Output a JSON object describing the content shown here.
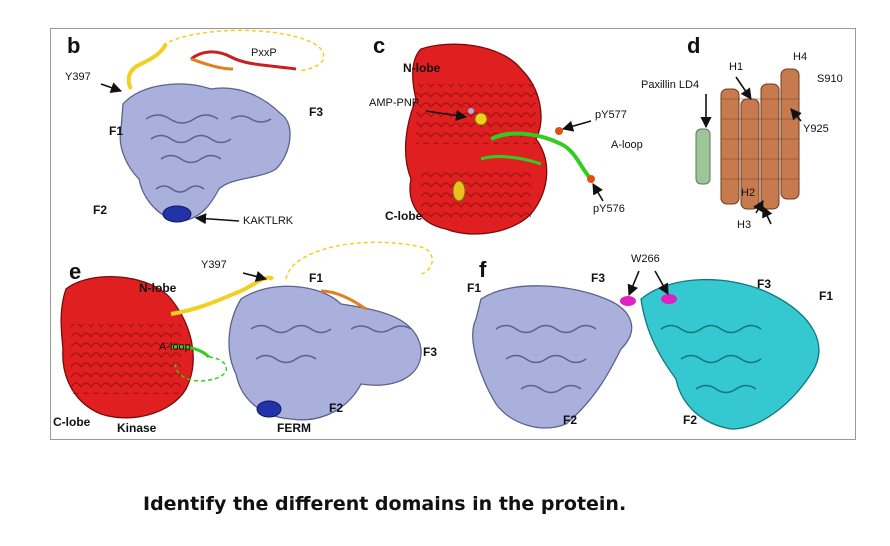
{
  "question": "Identify the different domains in the protein.",
  "colors": {
    "ferm": "#aab0dc",
    "kinase": "#e02020",
    "linker": "#f0d020",
    "loop": "#33cc22",
    "helix": "#c87a4f",
    "paxillin": "#9ec49a",
    "twin": "#35c8d0",
    "motif": "#2233aa",
    "w266": "#e020c0"
  },
  "panels": {
    "b": {
      "letter": "b",
      "y397": "Y397",
      "f1": "F1",
      "f2": "F2",
      "f3": "F3",
      "pxxp": "PxxP",
      "kaktlrk": "KAKTLRK"
    },
    "c": {
      "letter": "c",
      "n_lobe": "N-lobe",
      "c_lobe": "C-lobe",
      "amp_pnp": "AMP-PNP",
      "py577": "pY577",
      "a_loop": "A-loop",
      "py576": "pY576"
    },
    "d": {
      "letter": "d",
      "h1": "H1",
      "h2": "H2",
      "h3": "H3",
      "h4": "H4",
      "paxillin": "Paxillin LD4",
      "s910": "S910",
      "y925": "Y925"
    },
    "e": {
      "letter": "e",
      "y397": "Y397",
      "n_lobe": "N-lobe",
      "f1": "F1",
      "f2": "F2",
      "f3": "F3",
      "a_loop": "A-loop",
      "c_lobe": "C-lobe",
      "kinase": "Kinase",
      "ferm": "FERM"
    },
    "f": {
      "letter": "f",
      "w266": "W266",
      "f1_left": "F1",
      "f3_left": "F3",
      "f2_left": "F2",
      "f3_right": "F3",
      "f1_right": "F1",
      "f2_right": "F2"
    }
  }
}
